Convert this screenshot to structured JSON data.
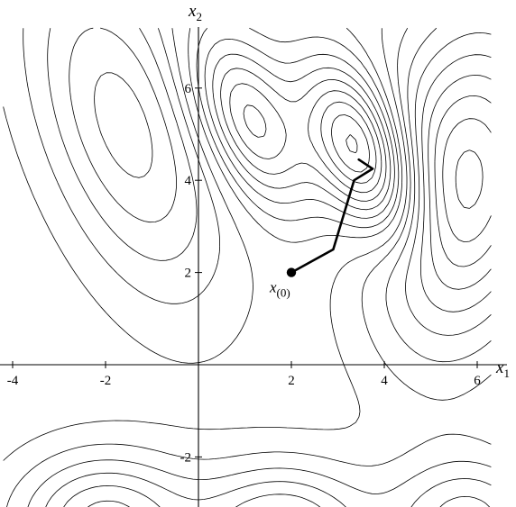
{
  "chart_data": {
    "type": "contour",
    "xlabel": "x",
    "xlabel_sub": "1",
    "ylabel": "x",
    "ylabel_sub": "2",
    "xlim": [
      -4.2,
      6.3
    ],
    "ylim": [
      -3.1,
      7.3
    ],
    "xticks": [
      {
        "v": -4,
        "label": "-4"
      },
      {
        "v": -2,
        "label": "-2"
      },
      {
        "v": 2,
        "label": "2"
      },
      {
        "v": 4,
        "label": "4"
      },
      {
        "v": 6,
        "label": "6"
      }
    ],
    "yticks": [
      {
        "v": -2,
        "label": "-2"
      },
      {
        "v": 2,
        "label": "2"
      },
      {
        "v": 4,
        "label": "4"
      },
      {
        "v": 6,
        "label": "6"
      }
    ],
    "start_point": {
      "x": 2.0,
      "y": 2.0,
      "label": "x",
      "label_sub": "(0)"
    },
    "descent_path": [
      [
        2.0,
        2.0
      ],
      [
        2.9,
        2.5
      ],
      [
        3.35,
        4.0
      ],
      [
        3.75,
        4.25
      ],
      [
        3.45,
        4.45
      ]
    ],
    "surface_features": [
      {
        "kind": "min",
        "x": 3.5,
        "y": 4.6,
        "sx": 0.85,
        "sy": 1.3,
        "r": -0.5,
        "a": -10
      },
      {
        "kind": "min",
        "x": 1.1,
        "y": 5.3,
        "sx": 0.85,
        "sy": 1.3,
        "r": -0.5,
        "a": -7
      },
      {
        "kind": "max",
        "x": 5.7,
        "y": 3.9,
        "sx": 1.3,
        "sy": 2.4,
        "r": 0.2,
        "a": 9
      },
      {
        "kind": "max",
        "x": -1.6,
        "y": 5.2,
        "sx": 1.4,
        "sy": 2.5,
        "r": -0.5,
        "a": 5
      },
      {
        "kind": "max",
        "x": -2.0,
        "y": -3.4,
        "sx": 1.3,
        "sy": 1.0,
        "r": 0,
        "a": 6
      },
      {
        "kind": "max",
        "x": 1.8,
        "y": -3.6,
        "sx": 1.3,
        "sy": 1.0,
        "r": 0,
        "a": 6
      },
      {
        "kind": "max",
        "x": 5.8,
        "y": -3.4,
        "sx": 1.2,
        "sy": 1.0,
        "r": 0,
        "a": 5
      }
    ],
    "contour_levels": [
      -9.5,
      -8.5,
      -7.5,
      -6.5,
      -5.5,
      -4.5,
      -3.5,
      -2.5,
      -1.5,
      -0.6,
      0.6,
      1.5,
      2.5,
      3.5,
      4.5,
      5.5,
      6.5,
      7.5,
      8.5
    ]
  }
}
